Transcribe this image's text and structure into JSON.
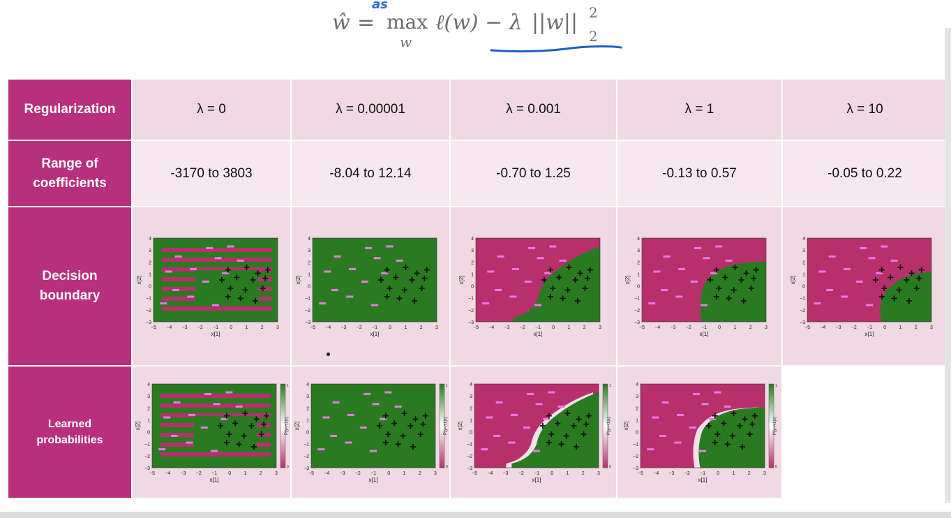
{
  "formula": {
    "w_hat": "ŵ",
    "equals": "=",
    "max": "max",
    "max_sub": "w",
    "loss": "ℓ(w) − λ",
    "norm": "||w||",
    "norm_sup": "2",
    "norm_sub": "2",
    "annotation": "as"
  },
  "colors": {
    "header": "#b8307d",
    "cell": "#efd9e2",
    "cell_light": "#f6e8ee",
    "positive_region": "#2a7a22",
    "negative_region": "#b8306b",
    "plus_mark": "#111111",
    "minus_mark": "#e879e8"
  },
  "table": {
    "row_headers": {
      "regularization": "Regularization",
      "range_line1": "Range of",
      "range_line2": "coefficients",
      "decision_line1": "Decision",
      "decision_line2": "boundary",
      "learned_line1": "Learned",
      "learned_line2": "probabilities"
    },
    "lambdas": [
      "λ = 0",
      "λ = 0.00001",
      "λ = 0.001",
      "λ = 1",
      "λ = 10"
    ],
    "ranges": [
      "-3170 to 3803",
      "-8.04 to 12.14",
      "-0.70 to 1.25",
      "-0.13 to 0.57",
      "-0.05 to 0.22"
    ]
  },
  "plot_axes": {
    "xlabel": "x[1]",
    "ylabel": "x[2]",
    "xticks": [
      "−5",
      "−4",
      "−3",
      "−2",
      "−1",
      "0",
      "1",
      "2",
      "3"
    ],
    "yticks": [
      "4",
      "3",
      "2",
      "1",
      "0",
      "−1",
      "−2",
      "−3"
    ],
    "colorbar_label": "P(y=+1|x)",
    "colorbar_max": "1.0",
    "colorbar_min": "0.0"
  }
}
